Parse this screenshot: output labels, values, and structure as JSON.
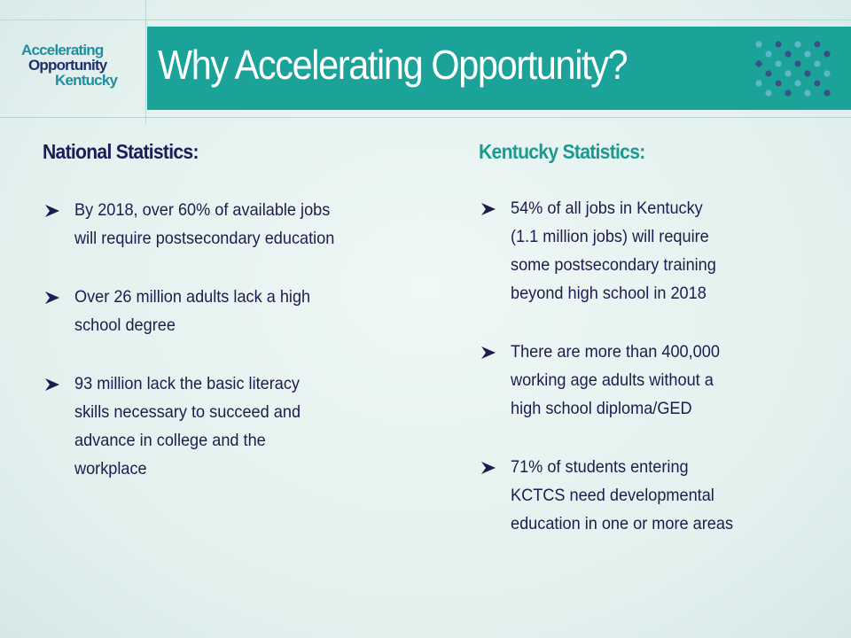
{
  "logo": {
    "lines": [
      "Accelerating",
      "Opportunity",
      "Kentucky"
    ]
  },
  "header": {
    "title": "Why Accelerating Opportunity?"
  },
  "national": {
    "heading": "National Statistics:",
    "bullets": [
      {
        "lines": [
          "By 2018, over 60% of available jobs",
          "will require postsecondary education"
        ]
      },
      {
        "lines": [
          "Over 26 million adults lack a high",
          "school degree"
        ]
      },
      {
        "lines": [
          "93 million lack the basic literacy",
          "skills necessary to succeed and",
          "advance in college and the",
          "workplace"
        ]
      }
    ]
  },
  "kentucky": {
    "heading": "Kentucky Statistics:",
    "bullets": [
      {
        "lines": [
          "54% of all jobs in Kentucky",
          "(1.1 million jobs) will require",
          "some postsecondary training",
          "beyond high school in 2018"
        ]
      },
      {
        "lines": [
          "There are more than 400,000",
          "working age adults without a",
          "high school diploma/GED"
        ]
      },
      {
        "lines": [
          "71% of students entering",
          "KCTCS need developmental",
          "education in one or more areas"
        ]
      }
    ]
  }
}
